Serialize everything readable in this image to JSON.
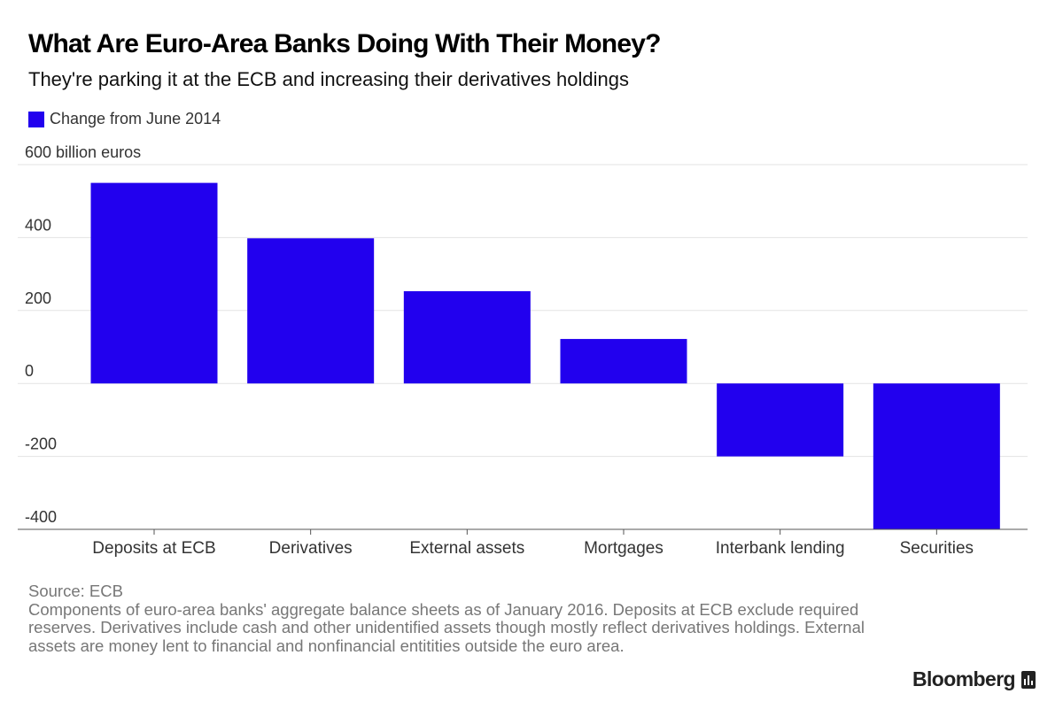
{
  "header": {
    "title": "What Are Euro-Area Banks Doing With Their Money?",
    "subtitle": "They're parking it at the ECB and increasing their derivatives holdings"
  },
  "legend": {
    "label": "Change from June 2014",
    "color": "#2200ee"
  },
  "chart_data": {
    "type": "bar",
    "title": "What Are Euro-Area Banks Doing With Their Money?",
    "subtitle": "They're parking it at the ECB and increasing their derivatives holdings",
    "categories": [
      "Deposits at ECB",
      "Derivatives",
      "External assets",
      "Mortgages",
      "Interbank lending",
      "Securities"
    ],
    "series": [
      {
        "name": "Change from June 2014",
        "values": [
          550,
          398,
          253,
          122,
          -200,
          -400
        ]
      }
    ],
    "xlabel": "",
    "ylabel": "billion euros",
    "ylim": [
      -400,
      600
    ],
    "yticks": [
      600,
      400,
      200,
      0,
      -200,
      -400
    ],
    "ytick_labels": [
      "600 billion euros",
      "400",
      "200",
      "0",
      "-200",
      "-400"
    ],
    "grid": true,
    "legend_position": "top-left",
    "bar_color": "#2200ee"
  },
  "footer": {
    "source": "Source: ECB",
    "note": "Components of euro-area banks' aggregate balance sheets as of January 2016. Deposits at ECB exclude required reserves. Derivatives include cash and other unidentified assets though mostly reflect derivatives holdings. External assets are money lent to financial and nonfinancial entitities outside the euro area."
  },
  "brand": {
    "name": "Bloomberg",
    "icon": "bloomberg-terminal-icon"
  }
}
